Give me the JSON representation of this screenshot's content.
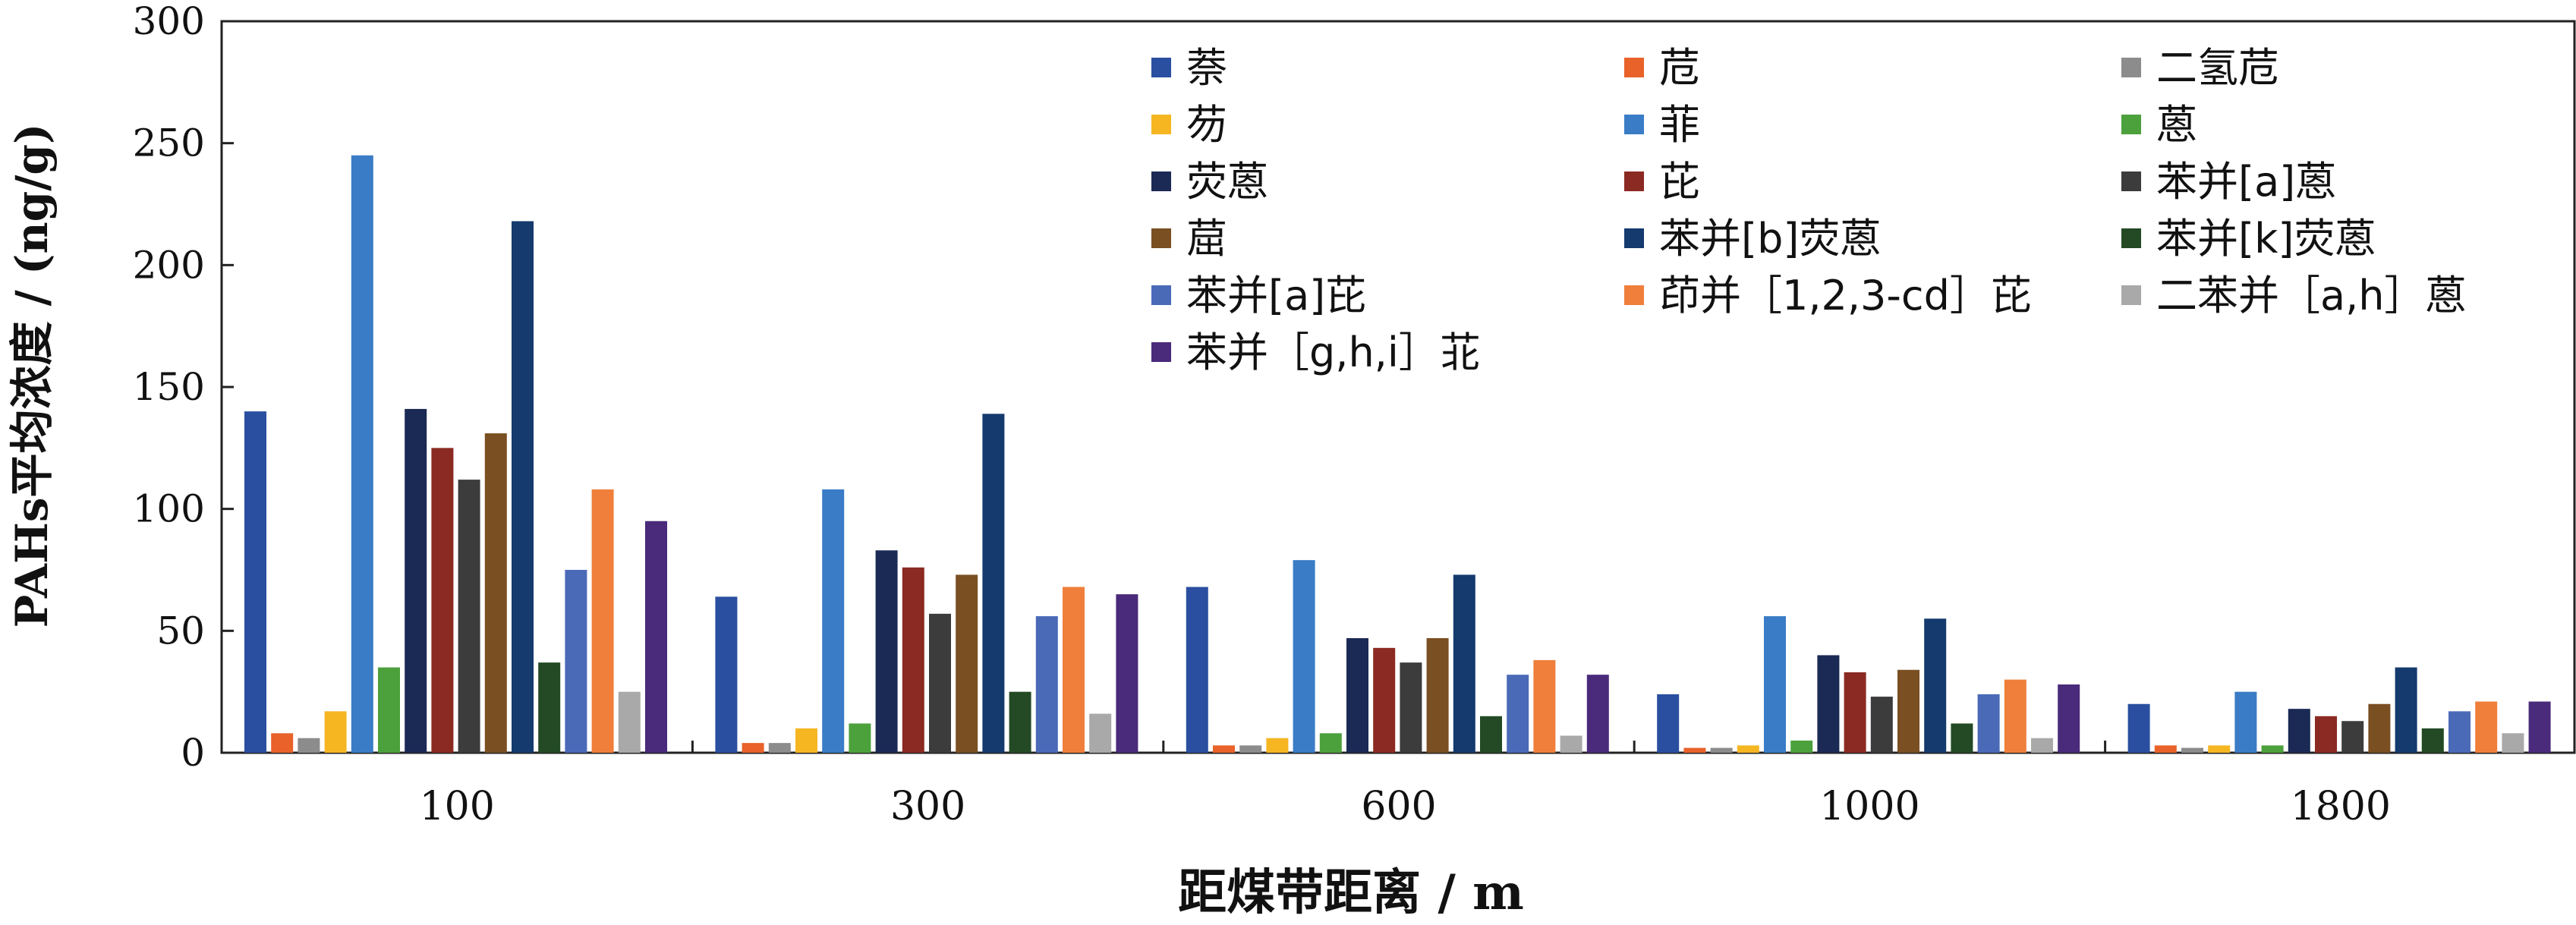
{
  "chart_data": {
    "type": "bar",
    "xlabel": "距煤带距离 / m",
    "ylabel": "PAHs平均浓度 / (ng/g)",
    "ylim": [
      0,
      300
    ],
    "yticks": [
      0,
      50,
      100,
      150,
      200,
      250,
      300
    ],
    "categories": [
      "100",
      "300",
      "600",
      "1000",
      "1800"
    ],
    "grid": false,
    "legend_position": "top-right",
    "series": [
      {
        "name": "萘",
        "color": "#2a4fa0",
        "values": [
          140,
          64,
          68,
          24,
          20
        ]
      },
      {
        "name": "苊",
        "color": "#e8622a",
        "values": [
          8,
          4,
          3,
          2,
          3
        ]
      },
      {
        "name": "二氢苊",
        "color": "#8c8c8c",
        "values": [
          6,
          4,
          3,
          2,
          2
        ]
      },
      {
        "name": "芴",
        "color": "#f5b622",
        "values": [
          17,
          10,
          6,
          3,
          3
        ]
      },
      {
        "name": "菲",
        "color": "#3a7cc6",
        "values": [
          245,
          108,
          79,
          56,
          25
        ]
      },
      {
        "name": "蒽",
        "color": "#4ca13c",
        "values": [
          35,
          12,
          8,
          5,
          3
        ]
      },
      {
        "name": "荧蒽",
        "color": "#1b2a55",
        "values": [
          141,
          83,
          47,
          40,
          18
        ]
      },
      {
        "name": "芘",
        "color": "#8b2a22",
        "values": [
          125,
          76,
          43,
          33,
          15
        ]
      },
      {
        "name": "苯并[a]蒽",
        "color": "#3c3c3c",
        "values": [
          112,
          57,
          37,
          23,
          13
        ]
      },
      {
        "name": "䓛",
        "color": "#7a4f22",
        "values": [
          131,
          73,
          47,
          34,
          20
        ]
      },
      {
        "name": "苯并[b]荧蒽",
        "color": "#143a6e",
        "values": [
          218,
          139,
          73,
          55,
          35
        ]
      },
      {
        "name": "苯并[k]荧蒽",
        "color": "#234a25",
        "values": [
          37,
          25,
          15,
          12,
          10
        ]
      },
      {
        "name": "苯并[a]芘",
        "color": "#4a6ab8",
        "values": [
          75,
          56,
          32,
          24,
          17
        ]
      },
      {
        "name": "茚并［1,2,3-cd］芘",
        "color": "#ef7f3a",
        "values": [
          108,
          68,
          38,
          30,
          21
        ]
      },
      {
        "name": "二苯并［a,h］蒽",
        "color": "#a9a9a9",
        "values": [
          25,
          16,
          7,
          6,
          8
        ]
      },
      {
        "name": "苯并［g,h,i］苝",
        "color": "#4a2a7a",
        "values": [
          95,
          65,
          32,
          28,
          21
        ]
      }
    ]
  }
}
